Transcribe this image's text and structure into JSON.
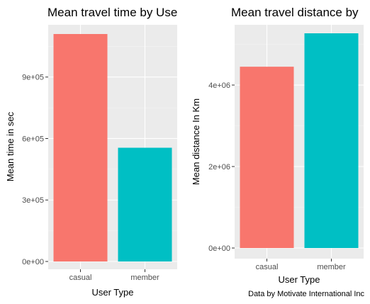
{
  "chart_data": [
    {
      "type": "bar",
      "title": "Mean travel time by Use",
      "xlabel": "User Type",
      "ylabel": "Mean time in sec",
      "categories": [
        "casual",
        "member"
      ],
      "values": [
        1110000,
        555000
      ],
      "colors": [
        "#F8766D",
        "#00BFC4"
      ],
      "ylim": [
        0,
        1110000
      ],
      "yticks": [
        0,
        300000,
        600000,
        900000
      ],
      "ytick_labels": [
        "0e+00",
        "3e+05",
        "6e+05",
        "9e+05"
      ],
      "grid": true,
      "legend": "none"
    },
    {
      "type": "bar",
      "title": "Mean travel distance by",
      "xlabel": "User Type",
      "ylabel": "Mean distance In Km",
      "categories": [
        "casual",
        "member"
      ],
      "values": [
        4450000,
        5270000
      ],
      "colors": [
        "#F8766D",
        "#00BFC4"
      ],
      "ylim": [
        0,
        5270000
      ],
      "yticks": [
        0,
        2000000,
        4000000
      ],
      "ytick_labels": [
        "0e+00",
        "2e+06",
        "4e+06"
      ],
      "grid": true,
      "legend": "none",
      "caption": "Data by Motivate International Inc"
    }
  ]
}
